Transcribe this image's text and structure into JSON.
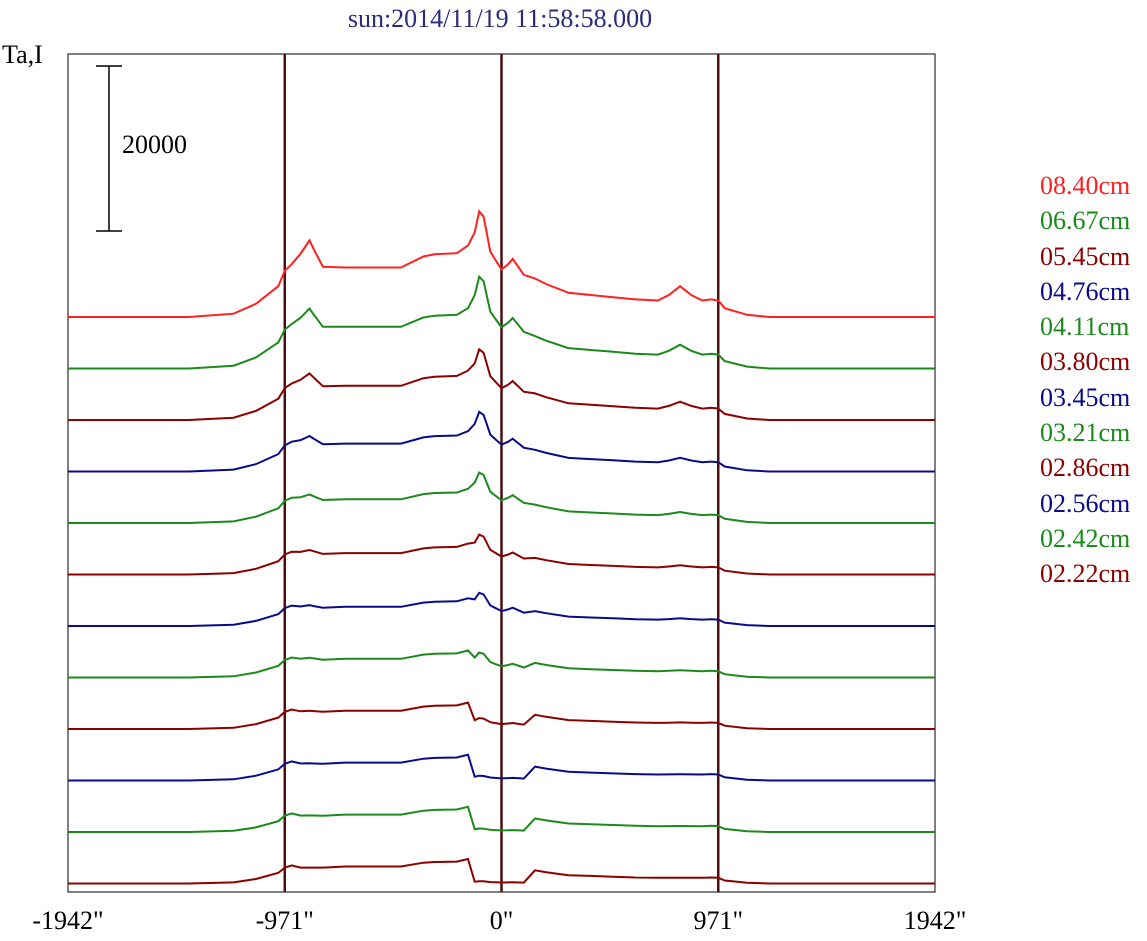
{
  "chart_data": {
    "type": "line",
    "title": "sun:2014/11/19 11:58:58.000",
    "ylabel": "Ta,I",
    "xlabel": "",
    "scale_bar_label": "20000",
    "scale_bar_value": 20000,
    "xlim": [
      -1942,
      1942
    ],
    "xticks": [
      "-1942\"",
      "-971\"",
      "0\"",
      "971\"",
      "1942\""
    ],
    "xtick_values": [
      -1942,
      -971,
      0,
      971,
      1942
    ],
    "vertical_lines": [
      -971,
      0,
      971
    ],
    "x": [
      -1942,
      -1400,
      -1200,
      -1100,
      -1000,
      -971,
      -940,
      -900,
      -880,
      -860,
      -840,
      -800,
      -700,
      -600,
      -450,
      -350,
      -300,
      -200,
      -150,
      -120,
      -100,
      -80,
      -50,
      -30,
      0,
      30,
      50,
      80,
      100,
      150,
      200,
      300,
      400,
      500,
      600,
      700,
      750,
      800,
      850,
      900,
      940,
      971,
      1000,
      1100,
      1200,
      1400,
      1942
    ],
    "profile": [
      0,
      0,
      0.03,
      0.12,
      0.28,
      0.42,
      0.48,
      0.55,
      0.6,
      0.65,
      0.58,
      0.45,
      0.45,
      0.45,
      0.45,
      0.55,
      0.57,
      0.58,
      0.65,
      0.8,
      1.0,
      0.95,
      0.62,
      0.55,
      0.45,
      0.5,
      0.55,
      0.46,
      0.4,
      0.35,
      0.3,
      0.22,
      0.2,
      0.18,
      0.16,
      0.15,
      0.2,
      0.28,
      0.2,
      0.15,
      0.16,
      0.15,
      0.08,
      0.02,
      0,
      0,
      0
    ],
    "series": [
      {
        "name": "08.40cm",
        "color": "#ff2020",
        "center": 1.6,
        "limb": 1.0,
        "peak": 0.5
      },
      {
        "name": "06.67cm",
        "color": "#1a8a1a",
        "center": 1.65,
        "limb": 0.82,
        "peak": 0.43
      },
      {
        "name": "05.45cm",
        "color": "#8b0000",
        "center": 1.55,
        "limb": 0.7,
        "peak": 0.36
      },
      {
        "name": "04.76cm",
        "color": "#0a0a8a",
        "center": 1.6,
        "limb": 0.55,
        "peak": 0.3
      },
      {
        "name": "04.11cm",
        "color": "#1a8a1a",
        "center": 1.6,
        "limb": 0.45,
        "peak": 0.26
      },
      {
        "name": "03.80cm",
        "color": "#8b0000",
        "center": 1.4,
        "limb": 0.35,
        "peak": 0.24
      },
      {
        "name": "03.45cm",
        "color": "#0a0a8a",
        "center": 1.3,
        "limb": 0.25,
        "peak": 0.22
      },
      {
        "name": "03.21cm",
        "color": "#1a8a1a",
        "center": 1.0,
        "limb": 0.2,
        "peak": 0.22
      },
      {
        "name": "02.86cm",
        "color": "#8b0000",
        "center": 0.45,
        "limb": 0.1,
        "peak": 0.22
      },
      {
        "name": "02.56cm",
        "color": "#0a0a8a",
        "center": 0.2,
        "limb": 0.05,
        "peak": 0.22
      },
      {
        "name": "02.42cm",
        "color": "#1a8a1a",
        "center": 0.15,
        "limb": 0.03,
        "peak": 0.22
      },
      {
        "name": "02.22cm",
        "color": "#8b0000",
        "center": 0.1,
        "limb": 0.0,
        "peak": 0.22
      }
    ]
  }
}
